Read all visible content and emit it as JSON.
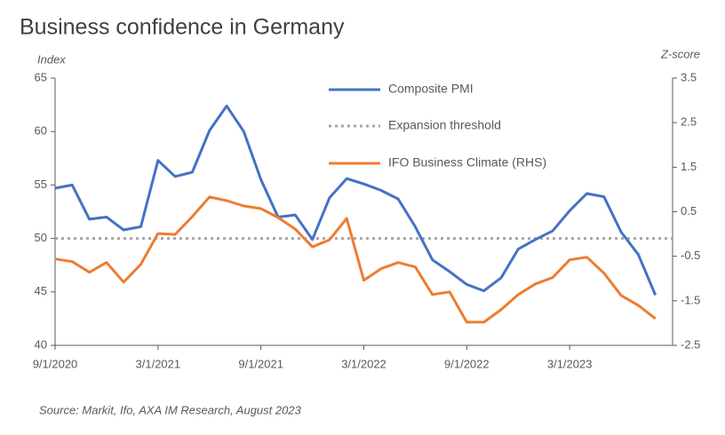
{
  "chart_data": {
    "type": "line",
    "title": "Business confidence in Germany",
    "y_label": "Index",
    "y2_label": "Z-score",
    "source": "Source: Markit, Ifo, AXA IM Research, August 2023",
    "x": [
      "9/1/2020",
      "10/1/2020",
      "11/1/2020",
      "12/1/2020",
      "1/1/2021",
      "2/1/2021",
      "3/1/2021",
      "4/1/2021",
      "5/1/2021",
      "6/1/2021",
      "7/1/2021",
      "8/1/2021",
      "9/1/2021",
      "10/1/2021",
      "11/1/2021",
      "12/1/2021",
      "1/1/2022",
      "2/1/2022",
      "3/1/2022",
      "4/1/2022",
      "5/1/2022",
      "6/1/2022",
      "7/1/2022",
      "8/1/2022",
      "9/1/2022",
      "10/1/2022",
      "11/1/2022",
      "12/1/2022",
      "1/1/2023",
      "2/1/2023",
      "3/1/2023",
      "4/1/2023",
      "5/1/2023",
      "6/1/2023",
      "7/1/2023",
      "8/1/2023"
    ],
    "series": [
      {
        "name": "Composite PMI",
        "color": "#4472c4",
        "axis": "y",
        "values": [
          54.7,
          55.0,
          51.8,
          52.0,
          50.8,
          51.1,
          57.3,
          55.8,
          56.2,
          60.1,
          62.4,
          60.0,
          55.5,
          52.0,
          52.2,
          49.9,
          53.8,
          55.6,
          55.1,
          54.5,
          53.7,
          51.1,
          48.0,
          46.9,
          45.7,
          45.1,
          46.3,
          49.0,
          49.9,
          50.7,
          52.6,
          54.2,
          53.9,
          50.6,
          48.5,
          44.7
        ]
      },
      {
        "name": "IFO Business Climate (RHS)",
        "color": "#ed7d31",
        "axis": "y2",
        "values": [
          -0.56,
          -0.62,
          -0.86,
          -0.64,
          -1.08,
          -0.68,
          0.01,
          -0.01,
          0.39,
          0.83,
          0.75,
          0.63,
          0.57,
          0.37,
          0.11,
          -0.29,
          -0.13,
          0.35,
          -1.04,
          -0.78,
          -0.64,
          -0.74,
          -1.36,
          -1.3,
          -1.98,
          -1.98,
          -1.7,
          -1.36,
          -1.12,
          -0.98,
          -0.58,
          -0.52,
          -0.88,
          -1.38,
          -1.6,
          -1.9
        ]
      }
    ],
    "reference_line": {
      "name": "Expansion threshold",
      "value": 50,
      "color": "#a6a6a6"
    },
    "xlim": [
      "9/1/2020",
      "9/1/2023"
    ],
    "xticks": [
      "9/1/2020",
      "3/1/2021",
      "9/1/2021",
      "3/1/2022",
      "9/1/2022",
      "3/1/2023"
    ],
    "ylim": [
      40,
      65
    ],
    "yticks": [
      40,
      45,
      50,
      55,
      60,
      65
    ],
    "y2lim": [
      -2.5,
      3.5
    ],
    "y2ticks": [
      -2.5,
      -1.5,
      -0.5,
      0.5,
      1.5,
      2.5,
      3.5
    ],
    "grid": false,
    "legend": "top"
  }
}
